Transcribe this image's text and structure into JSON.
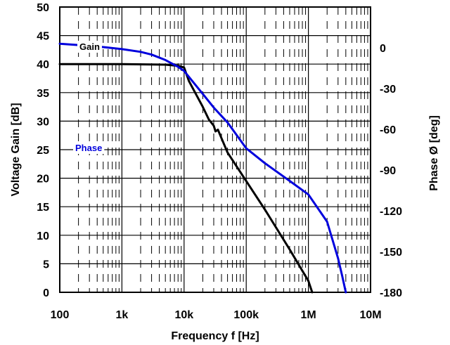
{
  "chart_data": {
    "type": "line",
    "xlabel": "Frequency f [Hz]",
    "ylabel_left": "Voltage Gain [dB]",
    "ylabel_right": "Phase Ø [deg]",
    "x_scale": "log",
    "xlim": [
      100,
      10000000
    ],
    "ylim_left": [
      0,
      50
    ],
    "ylim_right": [
      -180,
      30
    ],
    "grid": true,
    "x_ticks": [
      100,
      1000,
      10000,
      100000,
      1000000,
      10000000
    ],
    "x_tick_labels": [
      "100",
      "1k",
      "10k",
      "100k",
      "1M",
      "10M"
    ],
    "y_left_ticks": [
      0,
      5,
      10,
      15,
      20,
      25,
      30,
      35,
      40,
      45,
      50
    ],
    "y_left_tick_labels": [
      "0",
      "5",
      "10",
      "15",
      "20",
      "25",
      "30",
      "35",
      "40",
      "45",
      "50"
    ],
    "y_right_ticks": [
      0,
      -30,
      -60,
      -90,
      -120,
      -150,
      -180
    ],
    "y_right_tick_labels": [
      "0",
      "-30",
      "-60",
      "-90",
      "-120",
      "-150",
      "-180"
    ],
    "series": [
      {
        "name": "Gain",
        "axis": "left",
        "color": "#000000",
        "x": [
          100,
          1000,
          5000,
          8000,
          10000,
          12000,
          20000,
          25000,
          30000,
          32000,
          35000,
          50000,
          100000,
          200000,
          500000,
          1000000,
          1150000
        ],
        "y": [
          40,
          40,
          39.9,
          39.7,
          39.4,
          37,
          32.5,
          30.3,
          29.2,
          28.2,
          28.5,
          24.5,
          19.5,
          14.5,
          7.5,
          2,
          0
        ]
      },
      {
        "name": "Phase",
        "axis": "right",
        "color": "#0000dd",
        "x": [
          100,
          200,
          500,
          1000,
          2000,
          3000,
          5000,
          8000,
          10000,
          20000,
          30000,
          50000,
          100000,
          200000,
          500000,
          1000000,
          2000000,
          3000000,
          3500000,
          4000000
        ],
        "y": [
          3,
          2,
          0.5,
          -1,
          -3,
          -5,
          -9,
          -14,
          -17,
          -34,
          -44,
          -55,
          -74,
          -85,
          -98,
          -108,
          -128,
          -155,
          -168,
          -180
        ]
      }
    ]
  }
}
